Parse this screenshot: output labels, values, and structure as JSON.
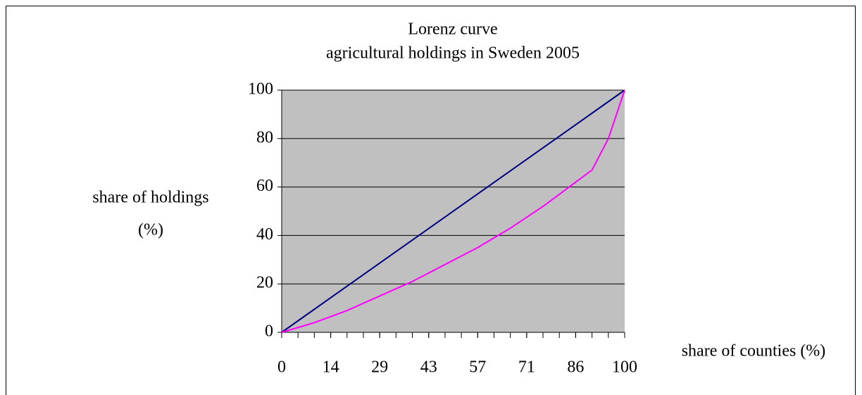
{
  "chart_data": {
    "type": "line",
    "title": "Lorenz curve",
    "subtitle": "agricultural holdings in Sweden 2005",
    "y_label": "share of holdings",
    "y_label_unit": "(%)",
    "x_label": "share of counties (%)",
    "x": [
      0,
      4.76,
      9.52,
      14.29,
      19.05,
      23.81,
      28.57,
      33.33,
      38.1,
      42.86,
      47.62,
      52.38,
      57.14,
      61.9,
      66.67,
      71.43,
      76.19,
      80.95,
      85.71,
      90.48,
      95.24,
      100
    ],
    "series": [
      {
        "color": "#000080",
        "values": [
          0,
          4.76,
          9.52,
          14.29,
          19.05,
          23.81,
          28.57,
          33.33,
          38.1,
          42.86,
          47.62,
          52.38,
          57.14,
          61.9,
          66.67,
          71.43,
          76.19,
          80.95,
          85.71,
          90.48,
          95.24,
          100
        ]
      },
      {
        "color": "#ff00ff",
        "values": [
          0,
          2,
          4,
          6.5,
          9,
          12,
          15,
          18,
          21,
          24.5,
          28,
          31.5,
          35,
          39,
          43,
          47.5,
          52,
          57,
          62,
          67,
          80,
          100
        ]
      }
    ],
    "xlim": [
      0,
      100
    ],
    "xticks": [
      0,
      {
        "value": 14.29,
        "label": "14"
      },
      {
        "value": 28.57,
        "label": "29"
      },
      {
        "value": 42.86,
        "label": "43"
      },
      {
        "value": 57.14,
        "label": "57"
      },
      {
        "value": 71.43,
        "label": "71"
      },
      {
        "value": 85.71,
        "label": "86"
      },
      100
    ],
    "ylim": [
      0,
      100
    ],
    "yticks": [
      0,
      20,
      40,
      60,
      80,
      100
    ],
    "grid": true,
    "plot_background": "#c0c0c0"
  }
}
